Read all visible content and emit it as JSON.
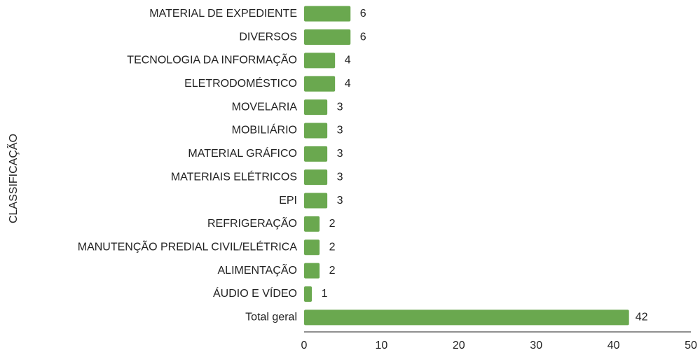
{
  "chart_data": {
    "type": "hbar",
    "y_label": "CLASSIFICAÇÃO",
    "categories": [
      "MATERIAL DE EXPEDIENTE",
      "DIVERSOS",
      "TECNOLOGIA DA INFORMAÇÃO",
      "ELETRODOMÉSTICO",
      "MOVELARIA",
      "MOBILIÁRIO",
      "MATERIAL GRÁFICO",
      "MATERIAIS ELÉTRICOS",
      "EPI",
      "REFRIGERAÇÃO",
      "MANUTENÇÃO PREDIAL CIVIL/ELÉTRICA",
      "ALIMENTAÇÃO",
      "ÁUDIO E VÍDEO",
      "Total geral"
    ],
    "values": [
      6,
      6,
      4,
      4,
      3,
      3,
      3,
      3,
      3,
      2,
      2,
      2,
      1,
      42
    ],
    "color": "#6aa84f",
    "xlim": [
      0,
      50
    ],
    "xticks": [
      0,
      10,
      20,
      30,
      40,
      50
    ],
    "grid": false
  }
}
